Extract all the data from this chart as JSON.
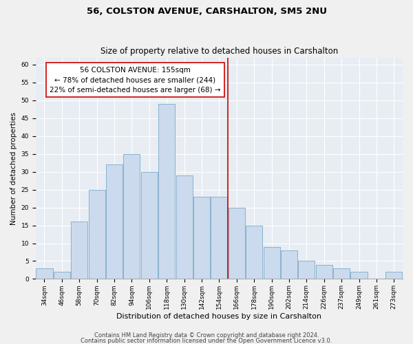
{
  "title1": "56, COLSTON AVENUE, CARSHALTON, SM5 2NU",
  "title2": "Size of property relative to detached houses in Carshalton",
  "xlabel": "Distribution of detached houses by size in Carshalton",
  "ylabel": "Number of detached properties",
  "categories": [
    "34sqm",
    "46sqm",
    "58sqm",
    "70sqm",
    "82sqm",
    "94sqm",
    "106sqm",
    "118sqm",
    "130sqm",
    "142sqm",
    "154sqm",
    "166sqm",
    "178sqm",
    "190sqm",
    "202sqm",
    "214sqm",
    "226sqm",
    "237sqm",
    "249sqm",
    "261sqm",
    "273sqm"
  ],
  "values": [
    3,
    2,
    16,
    25,
    32,
    35,
    30,
    49,
    29,
    23,
    23,
    20,
    15,
    9,
    8,
    5,
    4,
    3,
    2,
    0,
    2
  ],
  "bar_color": "#ccdaed",
  "bar_edge_color": "#7aaac8",
  "vline_color": "#cc0000",
  "annotation_box_color": "#ffffff",
  "annotation_box_edge": "#cc0000",
  "ylim": [
    0,
    62
  ],
  "yticks": [
    0,
    5,
    10,
    15,
    20,
    25,
    30,
    35,
    40,
    45,
    50,
    55,
    60
  ],
  "plot_bg_color": "#e8edf4",
  "fig_bg_color": "#f0f0f0",
  "title1_fontsize": 9.5,
  "title2_fontsize": 8.5,
  "xlabel_fontsize": 8,
  "ylabel_fontsize": 7.5,
  "tick_fontsize": 6.5,
  "annotation_fontsize": 7.5,
  "footer_fontsize": 6
}
